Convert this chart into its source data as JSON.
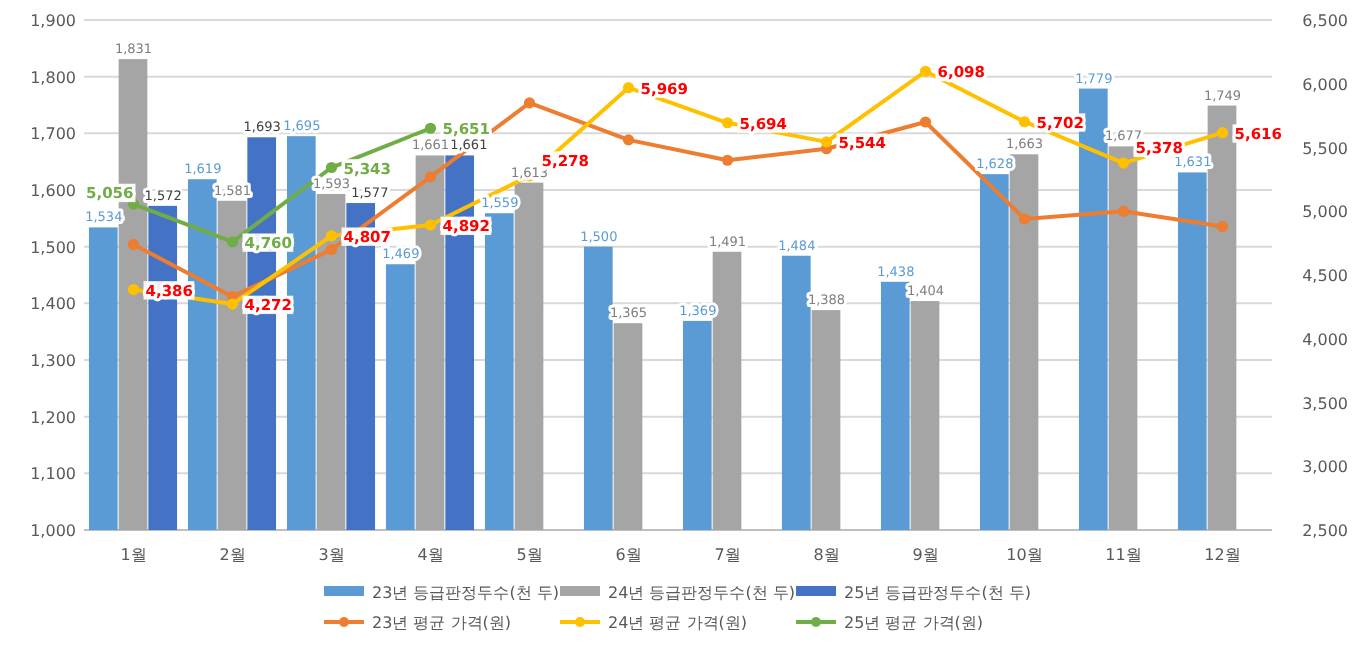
{
  "chart_data": {
    "type": "bar",
    "categories": [
      "1월",
      "2월",
      "3월",
      "4월",
      "5월",
      "6월",
      "7월",
      "8월",
      "9월",
      "10월",
      "11월",
      "12월"
    ],
    "ylim": [
      1000,
      1900
    ],
    "yticks": [
      {
        "value": 1000,
        "label": "1,000"
      },
      {
        "value": 1100,
        "label": "1,100"
      },
      {
        "value": 1200,
        "label": "1,200"
      },
      {
        "value": 1300,
        "label": "1,300"
      },
      {
        "value": 1400,
        "label": "1,400"
      },
      {
        "value": 1500,
        "label": "1,500"
      },
      {
        "value": 1600,
        "label": "1,600"
      },
      {
        "value": 1700,
        "label": "1,700"
      },
      {
        "value": 1800,
        "label": "1,800"
      },
      {
        "value": 1900,
        "label": "1,900"
      }
    ],
    "y2lim": [
      2500,
      6500
    ],
    "y2ticks": [
      {
        "value": 2500,
        "label": "2,500"
      },
      {
        "value": 3000,
        "label": "3,000"
      },
      {
        "value": 3500,
        "label": "3,500"
      },
      {
        "value": 4000,
        "label": "4,000"
      },
      {
        "value": 4500,
        "label": "4,500"
      },
      {
        "value": 5000,
        "label": "5,000"
      },
      {
        "value": 5500,
        "label": "5,500"
      },
      {
        "value": 6000,
        "label": "6,000"
      },
      {
        "value": 6500,
        "label": "6,500"
      }
    ],
    "grid": "y",
    "legend": "bottom",
    "series": [
      {
        "name": "23년 등급판정두수(천 두)",
        "color": "#5b9bd5",
        "values": [
          1534,
          1619,
          1695,
          1469,
          1559,
          1500,
          1369,
          1484,
          1438,
          1628,
          1779,
          1631
        ],
        "value_labels": [
          "1,534",
          "1,619",
          "1,695",
          "1,469",
          "1,559",
          "1,500",
          "1,369",
          "1,484",
          "1,438",
          "1,628",
          "1,779",
          "1,631"
        ]
      },
      {
        "name": "24년 등급판정두수(천 두)",
        "color": "#a5a5a5",
        "values": [
          1831,
          1581,
          1593,
          1661,
          1613,
          1365,
          1491,
          1388,
          1404,
          1663,
          1677,
          1749
        ],
        "value_labels": [
          "1,831",
          "1,581",
          "1,593",
          "1,661",
          "1,613",
          "1,365",
          "1,491",
          "1,388",
          "1,404",
          "1,663",
          "1,677",
          "1,749"
        ]
      },
      {
        "name": "25년 등급판정두수(천 두)",
        "color": "#4472c4",
        "values": [
          1572,
          1693,
          1577,
          1661,
          null,
          null,
          null,
          null,
          null,
          null,
          null,
          null
        ],
        "value_labels": [
          "1,572",
          "1,693",
          "1,577",
          "1,661",
          null,
          null,
          null,
          null,
          null,
          null,
          null,
          null
        ]
      },
      {
        "name": "23년 평균 가격(원)",
        "type": "line",
        "axis": "y2",
        "marker": "circle",
        "color": "#ed7d31",
        "values": [
          4740,
          4330,
          4700,
          5270,
          5850,
          5560,
          5400,
          5490,
          5700,
          4940,
          5000,
          4880
        ]
      },
      {
        "name": "24년 평균 가격(원)",
        "type": "line",
        "axis": "y2",
        "marker": "circle",
        "color": "#ffc000",
        "values": [
          4386,
          4272,
          4807,
          4892,
          5278,
          5969,
          5694,
          5544,
          6098,
          5702,
          5378,
          5616
        ],
        "value_labels": [
          "4,386",
          "4,272",
          "4,807",
          "4,892",
          "5,278",
          "5,969",
          "5,694",
          "5,544",
          "6,098",
          "5,702",
          "5,378",
          "5,616"
        ]
      },
      {
        "name": "25년 평균 가격(원)",
        "type": "line",
        "axis": "y2",
        "marker": "circle",
        "color": "#70ad47",
        "values": [
          5056,
          4760,
          5343,
          5651,
          null,
          null,
          null,
          null,
          null,
          null,
          null,
          null
        ],
        "value_labels": [
          "5,056",
          "4,760",
          "5,343",
          "5,651",
          null,
          null,
          null,
          null,
          null,
          null,
          null,
          null
        ]
      }
    ]
  }
}
